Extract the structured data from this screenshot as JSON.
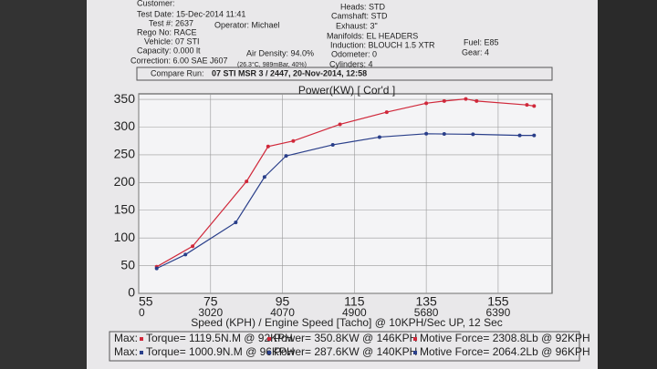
{
  "header": {
    "customer": "Customer:",
    "test_date": "Test Date: 15-Dec-2014 11:41",
    "test_no": "Test #: 2637",
    "operator": "Operator: Michael",
    "rego": "Rego No: RACE",
    "vehicle": "Vehicle: 07 STI",
    "capacity": "Capacity: 0.000 lt",
    "air_density": "Air Density: 94.0%",
    "correction": "Correction: 6.00 SAE J607",
    "conditions": "(26.3°C, 989mBar, 40%)",
    "heads": "Heads: STD",
    "camshaft": "Camshaft: STD",
    "exhaust": "Exhaust: 3\"",
    "manifolds": "Manifolds: EL HEADERS",
    "induction": "Induction: BLOUCH 1.5 XTR",
    "odometer": "Odometer: 0",
    "cylinders": "Cylinders: 4",
    "fuel": "Fuel: E85",
    "gear": "Gear: 4",
    "compare_label": "Compare Run:",
    "compare_run": "07 STI MSR 3 / 2447,   20-Nov-2014,   12:58"
  },
  "chart_data": {
    "type": "line",
    "title": "Power(KW)      [ Cor'd ]",
    "x_label": "Speed (KPH) / Engine Speed [Tacho] @ 10KPH/Sec UP, 12 Sec",
    "xlim": [
      55,
      170
    ],
    "ylim": [
      0,
      360
    ],
    "xticks": [
      55,
      75,
      95,
      115,
      135,
      155
    ],
    "rpm_ticks": [
      0,
      3020,
      4070,
      4900,
      5680,
      6390
    ],
    "yticks": [
      0,
      50,
      100,
      150,
      200,
      250,
      300,
      350
    ],
    "grid": true,
    "series": [
      {
        "name": "run",
        "color": "#d0283a",
        "x": [
          60,
          70,
          85,
          91,
          98,
          111,
          124,
          135,
          140,
          146,
          149,
          163,
          165
        ],
        "values": [
          48,
          85,
          202,
          265,
          275,
          305,
          327,
          343,
          347,
          350.8,
          347,
          340,
          338
        ]
      },
      {
        "name": "compare",
        "color": "#2a3f8a",
        "x": [
          60,
          68,
          82,
          90,
          96,
          109,
          122,
          135,
          140,
          148,
          161,
          165
        ],
        "values": [
          45,
          70,
          128,
          210,
          248,
          268,
          282,
          288,
          287.6,
          287,
          285,
          285
        ]
      }
    ]
  },
  "footer": {
    "rows": [
      [
        "Max:",
        "Torque= 1119.5N.M @ 92KPH",
        "Power= 350.8KW @ 146KPH",
        "Motive Force= 2308.8Lb @ 92KPH"
      ],
      [
        "Max:",
        "Torque= 1000.9N.M @ 96KPH",
        "Power= 287.6KW @ 140KPH",
        "Motive Force= 2064.2Lb @ 96KPH"
      ]
    ]
  }
}
